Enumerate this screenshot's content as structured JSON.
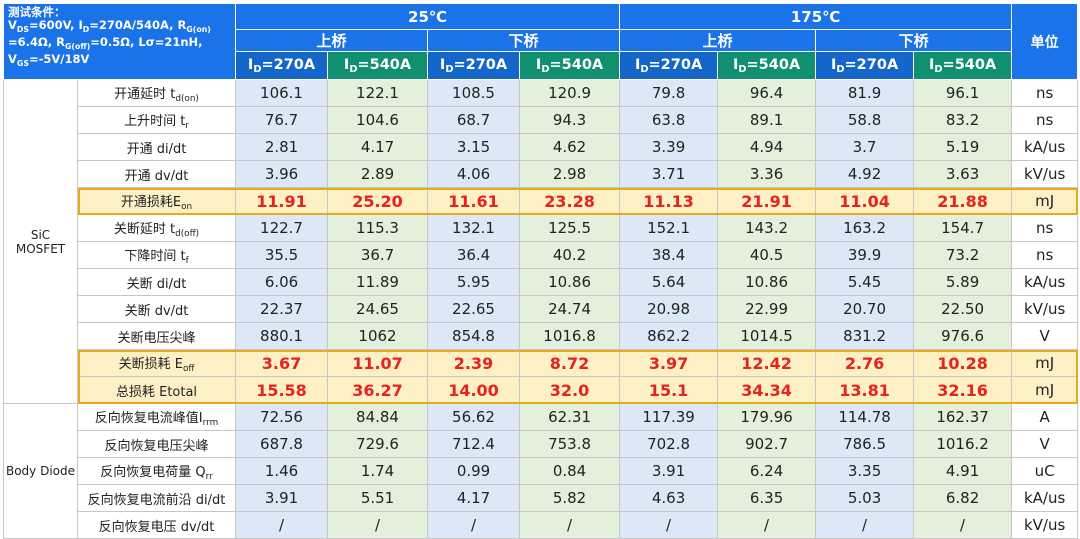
{
  "header": {
    "cond_l1": "测试条件：",
    "cond_l2a": "V",
    "cond_l2b": "DS",
    "cond_l2c": "=600V, I",
    "cond_l2d": "D",
    "cond_l2e": "=270A/540A, R",
    "cond_l2f": "G(on)",
    "cond_l3a": "=6.4Ω, R",
    "cond_l3b": "G(off)",
    "cond_l3c": "=0.5Ω, Lσ=21nH,",
    "cond_l4a": "V",
    "cond_l4b": "GS",
    "cond_l4c": "=-5V/18V",
    "temp_25": "25℃",
    "temp_175": "175℃",
    "upper": "上桥",
    "lower": "下桥",
    "id_prefix": "I",
    "id_sub": "D",
    "id_270": "=270A",
    "id_540": "=540A",
    "unit": "单位"
  },
  "groups": {
    "mosfet_l1": "SiC",
    "mosfet_l2": "MOSFET",
    "diode": "Body Diode"
  },
  "rows": [
    {
      "label": "开通延时 t",
      "sub": "d(on)",
      "values": [
        "106.1",
        "122.1",
        "108.5",
        "120.9",
        "79.8",
        "96.4",
        "81.9",
        "96.1"
      ],
      "unit": "ns"
    },
    {
      "label": "上升时间 t",
      "sub": "r",
      "values": [
        "76.7",
        "104.6",
        "68.7",
        "94.3",
        "63.8",
        "89.1",
        "58.8",
        "83.2"
      ],
      "unit": "ns"
    },
    {
      "label": "开通 di/dt",
      "sub": "",
      "values": [
        "2.81",
        "4.17",
        "3.15",
        "4.62",
        "3.39",
        "4.94",
        "3.7",
        "5.19"
      ],
      "unit": "kA/us"
    },
    {
      "label": "开通 dv/dt",
      "sub": "",
      "values": [
        "3.96",
        "2.89",
        "4.06",
        "2.98",
        "3.71",
        "3.36",
        "4.92",
        "3.63"
      ],
      "unit": "kV/us"
    },
    {
      "label": "开通损耗E",
      "sub": "on",
      "values": [
        "11.91",
        "25.20",
        "11.61",
        "23.28",
        "11.13",
        "21.91",
        "11.04",
        "21.88"
      ],
      "unit": "mJ"
    },
    {
      "label": "关断延时 t",
      "sub": "d(off)",
      "values": [
        "122.7",
        "115.3",
        "132.1",
        "125.5",
        "152.1",
        "143.2",
        "163.2",
        "154.7"
      ],
      "unit": "ns"
    },
    {
      "label": "下降时间 t",
      "sub": "f",
      "values": [
        "35.5",
        "36.7",
        "36.4",
        "40.2",
        "38.4",
        "40.5",
        "39.9",
        "73.2"
      ],
      "unit": "ns"
    },
    {
      "label": "关断 di/dt",
      "sub": "",
      "values": [
        "6.06",
        "11.89",
        "5.95",
        "10.86",
        "5.64",
        "10.86",
        "5.45",
        "5.89"
      ],
      "unit": "kA/us"
    },
    {
      "label": "关断 dv/dt",
      "sub": "",
      "values": [
        "22.37",
        "24.65",
        "22.65",
        "24.74",
        "20.98",
        "22.99",
        "20.70",
        "22.50"
      ],
      "unit": "kV/us"
    },
    {
      "label": "关断电压尖峰",
      "sub": "",
      "values": [
        "880.1",
        "1062",
        "854.8",
        "1016.8",
        "862.2",
        "1014.5",
        "831.2",
        "976.6"
      ],
      "unit": "V"
    },
    {
      "label": "关断损耗 E",
      "sub": "off",
      "values": [
        "3.67",
        "11.07",
        "2.39",
        "8.72",
        "3.97",
        "12.42",
        "2.76",
        "10.28"
      ],
      "unit": "mJ"
    },
    {
      "label": "总损耗 Etotal",
      "sub": "",
      "values": [
        "15.58",
        "36.27",
        "14.00",
        "32.0",
        "15.1",
        "34.34",
        "13.81",
        "32.16"
      ],
      "unit": "mJ"
    },
    {
      "label": "反向恢复电流峰值I",
      "sub": "rrm",
      "values": [
        "72.56",
        "84.84",
        "56.62",
        "62.31",
        "117.39",
        "179.96",
        "114.78",
        "162.37"
      ],
      "unit": "A"
    },
    {
      "label": "反向恢复电压尖峰",
      "sub": "",
      "values": [
        "687.8",
        "729.6",
        "712.4",
        "753.8",
        "702.8",
        "902.7",
        "786.5",
        "1016.2"
      ],
      "unit": "V"
    },
    {
      "label": "反向恢复电荷量 Q",
      "sub": "rr",
      "values": [
        "1.46",
        "1.74",
        "0.99",
        "0.84",
        "3.91",
        "6.24",
        "3.35",
        "4.91"
      ],
      "unit": "uC"
    },
    {
      "label": "反向恢复电流前沿 di/dt",
      "sub": "",
      "values": [
        "3.91",
        "5.51",
        "4.17",
        "5.82",
        "4.63",
        "6.35",
        "5.03",
        "6.82"
      ],
      "unit": "kA/us"
    },
    {
      "label": "反向恢复电压 dv/dt",
      "sub": "",
      "values": [
        "/",
        "/",
        "/",
        "/",
        "/",
        "/",
        "/",
        "/"
      ],
      "unit": "kV/us"
    }
  ]
}
